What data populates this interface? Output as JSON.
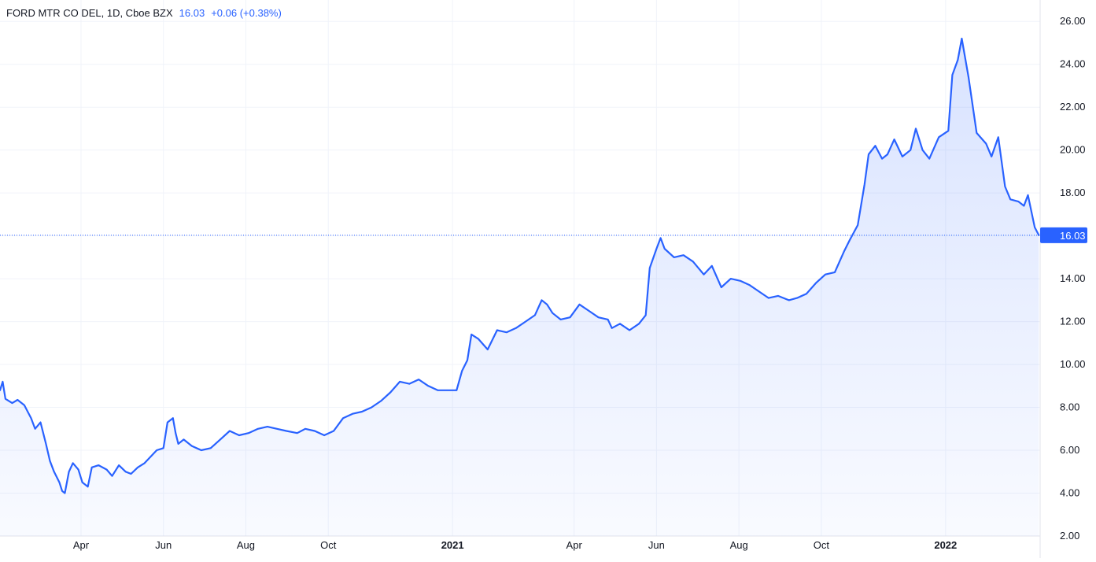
{
  "legend": {
    "symbol": "FORD MTR CO DEL, 1D, Cboe BZX",
    "last": "16.03",
    "change": "+0.06 (+0.38%)"
  },
  "colors": {
    "line": "#2962ff",
    "area_top": "#2962ff",
    "grid": "#f0f3fa",
    "axis_text": "#131722",
    "price_label_bg": "#2962ff",
    "price_label_text": "#ffffff",
    "last_price_line": "#2962ff"
  },
  "chart_data": {
    "type": "area",
    "xlabel": "",
    "ylabel": "",
    "x_range": [
      "2020-02-01",
      "2022-03-12"
    ],
    "ylim": [
      2,
      27
    ],
    "y_ticks": [
      "26.00",
      "24.00",
      "22.00",
      "20.00",
      "18.00",
      "16.00",
      "14.00",
      "12.00",
      "10.00",
      "8.00",
      "6.00",
      "4.00",
      "2.00"
    ],
    "x_ticks": [
      {
        "label": "Apr",
        "date": "2020-04-01",
        "bold": false
      },
      {
        "label": "Jun",
        "date": "2020-06-01",
        "bold": false
      },
      {
        "label": "Aug",
        "date": "2020-08-01",
        "bold": false
      },
      {
        "label": "Oct",
        "date": "2020-10-01",
        "bold": false
      },
      {
        "label": "2021",
        "date": "2021-01-01",
        "bold": true
      },
      {
        "label": "Apr",
        "date": "2021-04-01",
        "bold": false
      },
      {
        "label": "Jun",
        "date": "2021-06-01",
        "bold": false
      },
      {
        "label": "Aug",
        "date": "2021-08-01",
        "bold": false
      },
      {
        "label": "Oct",
        "date": "2021-10-01",
        "bold": false
      },
      {
        "label": "2022",
        "date": "2022-01-01",
        "bold": true
      }
    ],
    "last_price": 16.03,
    "last_price_label": "16.03",
    "grid": true,
    "series": [
      {
        "points": [
          [
            "2020-02-01",
            8.8
          ],
          [
            "2020-02-03",
            9.2
          ],
          [
            "2020-02-05",
            8.4
          ],
          [
            "2020-02-10",
            8.2
          ],
          [
            "2020-02-14",
            8.35
          ],
          [
            "2020-02-19",
            8.1
          ],
          [
            "2020-02-24",
            7.5
          ],
          [
            "2020-02-27",
            7.0
          ],
          [
            "2020-03-02",
            7.3
          ],
          [
            "2020-03-06",
            6.3
          ],
          [
            "2020-03-09",
            5.5
          ],
          [
            "2020-03-12",
            5.0
          ],
          [
            "2020-03-16",
            4.5
          ],
          [
            "2020-03-18",
            4.1
          ],
          [
            "2020-03-20",
            4.0
          ],
          [
            "2020-03-23",
            5.0
          ],
          [
            "2020-03-26",
            5.4
          ],
          [
            "2020-03-30",
            5.1
          ],
          [
            "2020-04-02",
            4.5
          ],
          [
            "2020-04-06",
            4.3
          ],
          [
            "2020-04-09",
            5.2
          ],
          [
            "2020-04-14",
            5.3
          ],
          [
            "2020-04-20",
            5.1
          ],
          [
            "2020-04-24",
            4.8
          ],
          [
            "2020-04-29",
            5.3
          ],
          [
            "2020-05-04",
            5.0
          ],
          [
            "2020-05-08",
            4.9
          ],
          [
            "2020-05-13",
            5.2
          ],
          [
            "2020-05-18",
            5.4
          ],
          [
            "2020-05-21",
            5.6
          ],
          [
            "2020-05-27",
            6.0
          ],
          [
            "2020-06-01",
            6.1
          ],
          [
            "2020-06-04",
            7.3
          ],
          [
            "2020-06-08",
            7.5
          ],
          [
            "2020-06-10",
            6.8
          ],
          [
            "2020-06-12",
            6.3
          ],
          [
            "2020-06-16",
            6.5
          ],
          [
            "2020-06-22",
            6.2
          ],
          [
            "2020-06-29",
            6.0
          ],
          [
            "2020-07-06",
            6.1
          ],
          [
            "2020-07-13",
            6.5
          ],
          [
            "2020-07-20",
            6.9
          ],
          [
            "2020-07-27",
            6.7
          ],
          [
            "2020-08-03",
            6.8
          ],
          [
            "2020-08-10",
            7.0
          ],
          [
            "2020-08-17",
            7.1
          ],
          [
            "2020-08-24",
            7.0
          ],
          [
            "2020-08-31",
            6.9
          ],
          [
            "2020-09-08",
            6.8
          ],
          [
            "2020-09-14",
            7.0
          ],
          [
            "2020-09-21",
            6.9
          ],
          [
            "2020-09-28",
            6.7
          ],
          [
            "2020-10-05",
            6.9
          ],
          [
            "2020-10-12",
            7.5
          ],
          [
            "2020-10-19",
            7.7
          ],
          [
            "2020-10-26",
            7.8
          ],
          [
            "2020-11-02",
            8.0
          ],
          [
            "2020-11-09",
            8.3
          ],
          [
            "2020-11-16",
            8.7
          ],
          [
            "2020-11-23",
            9.2
          ],
          [
            "2020-11-30",
            9.1
          ],
          [
            "2020-12-07",
            9.3
          ],
          [
            "2020-12-14",
            9.0
          ],
          [
            "2020-12-21",
            8.8
          ],
          [
            "2020-12-28",
            8.8
          ],
          [
            "2021-01-04",
            8.8
          ],
          [
            "2021-01-08",
            9.7
          ],
          [
            "2021-01-12",
            10.2
          ],
          [
            "2021-01-15",
            11.4
          ],
          [
            "2021-01-20",
            11.2
          ],
          [
            "2021-01-27",
            10.7
          ],
          [
            "2021-02-03",
            11.6
          ],
          [
            "2021-02-10",
            11.5
          ],
          [
            "2021-02-17",
            11.7
          ],
          [
            "2021-02-24",
            12.0
          ],
          [
            "2021-03-03",
            12.3
          ],
          [
            "2021-03-08",
            13.0
          ],
          [
            "2021-03-12",
            12.8
          ],
          [
            "2021-03-16",
            12.4
          ],
          [
            "2021-03-22",
            12.1
          ],
          [
            "2021-03-29",
            12.2
          ],
          [
            "2021-04-05",
            12.8
          ],
          [
            "2021-04-12",
            12.5
          ],
          [
            "2021-04-19",
            12.2
          ],
          [
            "2021-04-26",
            12.1
          ],
          [
            "2021-04-29",
            11.7
          ],
          [
            "2021-05-05",
            11.9
          ],
          [
            "2021-05-12",
            11.6
          ],
          [
            "2021-05-19",
            11.9
          ],
          [
            "2021-05-24",
            12.3
          ],
          [
            "2021-05-27",
            14.5
          ],
          [
            "2021-06-01",
            15.4
          ],
          [
            "2021-06-04",
            15.9
          ],
          [
            "2021-06-07",
            15.4
          ],
          [
            "2021-06-14",
            15.0
          ],
          [
            "2021-06-21",
            15.1
          ],
          [
            "2021-06-28",
            14.8
          ],
          [
            "2021-07-06",
            14.2
          ],
          [
            "2021-07-12",
            14.6
          ],
          [
            "2021-07-19",
            13.6
          ],
          [
            "2021-07-26",
            14.0
          ],
          [
            "2021-08-02",
            13.9
          ],
          [
            "2021-08-09",
            13.7
          ],
          [
            "2021-08-16",
            13.4
          ],
          [
            "2021-08-23",
            13.1
          ],
          [
            "2021-08-30",
            13.2
          ],
          [
            "2021-09-07",
            13.0
          ],
          [
            "2021-09-13",
            13.1
          ],
          [
            "2021-09-20",
            13.3
          ],
          [
            "2021-09-27",
            13.8
          ],
          [
            "2021-10-04",
            14.2
          ],
          [
            "2021-10-11",
            14.3
          ],
          [
            "2021-10-18",
            15.3
          ],
          [
            "2021-10-22",
            15.8
          ],
          [
            "2021-10-28",
            16.5
          ],
          [
            "2021-11-02",
            18.4
          ],
          [
            "2021-11-05",
            19.8
          ],
          [
            "2021-11-10",
            20.2
          ],
          [
            "2021-11-15",
            19.6
          ],
          [
            "2021-11-19",
            19.8
          ],
          [
            "2021-11-24",
            20.5
          ],
          [
            "2021-11-30",
            19.7
          ],
          [
            "2021-12-06",
            20.0
          ],
          [
            "2021-12-10",
            21.0
          ],
          [
            "2021-12-15",
            20.0
          ],
          [
            "2021-12-20",
            19.6
          ],
          [
            "2021-12-27",
            20.6
          ],
          [
            "2022-01-03",
            20.9
          ],
          [
            "2022-01-06",
            23.5
          ],
          [
            "2022-01-10",
            24.2
          ],
          [
            "2022-01-13",
            25.2
          ],
          [
            "2022-01-18",
            23.4
          ],
          [
            "2022-01-24",
            20.8
          ],
          [
            "2022-01-31",
            20.3
          ],
          [
            "2022-02-04",
            19.7
          ],
          [
            "2022-02-09",
            20.6
          ],
          [
            "2022-02-14",
            18.3
          ],
          [
            "2022-02-18",
            17.7
          ],
          [
            "2022-02-24",
            17.6
          ],
          [
            "2022-02-28",
            17.4
          ],
          [
            "2022-03-03",
            17.9
          ],
          [
            "2022-03-08",
            16.4
          ],
          [
            "2022-03-11",
            16.03
          ]
        ]
      }
    ]
  }
}
